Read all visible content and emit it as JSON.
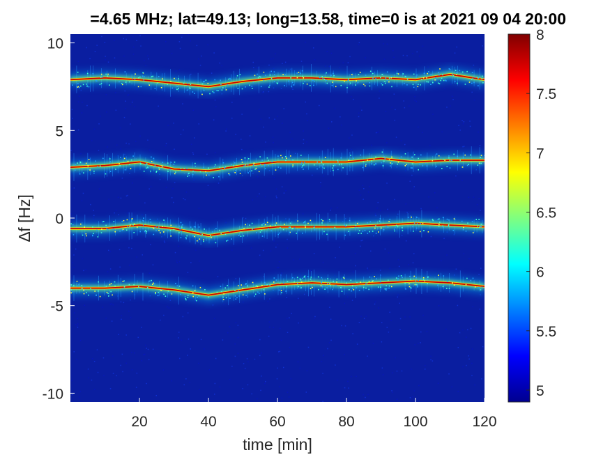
{
  "chart_data": {
    "type": "heatmap",
    "title": "=4.65 MHz;  lat=49.13; long=13.58, time=0 is at 2021 09 04 20:00",
    "xlabel": "time [min]",
    "ylabel": "∆f [Hz]",
    "xlim": [
      0,
      120
    ],
    "ylim": [
      -10.5,
      10.5
    ],
    "xticks": [
      20,
      40,
      60,
      80,
      100,
      120
    ],
    "yticks": [
      -10,
      -5,
      0,
      5,
      10
    ],
    "colorbar": {
      "colormap": "jet",
      "clim": [
        4.9,
        8
      ],
      "ticks": [
        5,
        5.5,
        6,
        6.5,
        7,
        7.5,
        8
      ]
    },
    "background_color": "#0a1ea0",
    "bands": [
      {
        "points": [
          [
            0,
            7.9
          ],
          [
            10,
            8.0
          ],
          [
            20,
            7.9
          ],
          [
            30,
            7.7
          ],
          [
            40,
            7.5
          ],
          [
            50,
            7.8
          ],
          [
            60,
            8.0
          ],
          [
            70,
            8.0
          ],
          [
            80,
            7.9
          ],
          [
            90,
            8.0
          ],
          [
            100,
            7.9
          ],
          [
            110,
            8.2
          ],
          [
            120,
            7.9
          ]
        ]
      },
      {
        "points": [
          [
            0,
            2.9
          ],
          [
            10,
            3.0
          ],
          [
            20,
            3.2
          ],
          [
            30,
            2.8
          ],
          [
            40,
            2.7
          ],
          [
            50,
            3.0
          ],
          [
            60,
            3.2
          ],
          [
            70,
            3.2
          ],
          [
            80,
            3.2
          ],
          [
            90,
            3.4
          ],
          [
            100,
            3.2
          ],
          [
            110,
            3.3
          ],
          [
            120,
            3.3
          ]
        ]
      },
      {
        "points": [
          [
            0,
            -0.6
          ],
          [
            10,
            -0.6
          ],
          [
            20,
            -0.4
          ],
          [
            30,
            -0.6
          ],
          [
            40,
            -1.0
          ],
          [
            50,
            -0.7
          ],
          [
            60,
            -0.5
          ],
          [
            70,
            -0.5
          ],
          [
            80,
            -0.5
          ],
          [
            90,
            -0.4
          ],
          [
            100,
            -0.3
          ],
          [
            110,
            -0.4
          ],
          [
            120,
            -0.5
          ]
        ]
      },
      {
        "points": [
          [
            0,
            -4.0
          ],
          [
            10,
            -4.0
          ],
          [
            20,
            -3.9
          ],
          [
            30,
            -4.1
          ],
          [
            40,
            -4.4
          ],
          [
            50,
            -4.1
          ],
          [
            60,
            -3.8
          ],
          [
            70,
            -3.7
          ],
          [
            80,
            -3.8
          ],
          [
            90,
            -3.7
          ],
          [
            100,
            -3.6
          ],
          [
            110,
            -3.7
          ],
          [
            120,
            -3.9
          ]
        ]
      }
    ]
  }
}
